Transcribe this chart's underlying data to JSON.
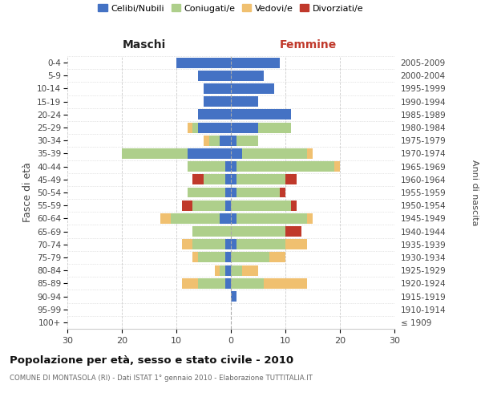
{
  "age_groups": [
    "100+",
    "95-99",
    "90-94",
    "85-89",
    "80-84",
    "75-79",
    "70-74",
    "65-69",
    "60-64",
    "55-59",
    "50-54",
    "45-49",
    "40-44",
    "35-39",
    "30-34",
    "25-29",
    "20-24",
    "15-19",
    "10-14",
    "5-9",
    "0-4"
  ],
  "birth_years": [
    "≤ 1909",
    "1910-1914",
    "1915-1919",
    "1920-1924",
    "1925-1929",
    "1930-1934",
    "1935-1939",
    "1940-1944",
    "1945-1949",
    "1950-1954",
    "1955-1959",
    "1960-1964",
    "1965-1969",
    "1970-1974",
    "1975-1979",
    "1980-1984",
    "1985-1989",
    "1990-1994",
    "1995-1999",
    "2000-2004",
    "2005-2009"
  ],
  "colors": {
    "celibe": "#4472C4",
    "coniugato": "#AECF8B",
    "vedovo": "#F0C070",
    "divorziato": "#C0392B"
  },
  "maschi": {
    "celibe": [
      0,
      0,
      0,
      1,
      1,
      1,
      1,
      0,
      2,
      1,
      1,
      1,
      1,
      8,
      2,
      6,
      6,
      5,
      5,
      6,
      10
    ],
    "coniugato": [
      0,
      0,
      0,
      5,
      1,
      5,
      6,
      7,
      9,
      6,
      7,
      4,
      7,
      12,
      2,
      1,
      0,
      0,
      0,
      0,
      0
    ],
    "vedovo": [
      0,
      0,
      0,
      3,
      1,
      1,
      2,
      0,
      2,
      0,
      0,
      0,
      0,
      0,
      1,
      1,
      0,
      0,
      0,
      0,
      0
    ],
    "divorziato": [
      0,
      0,
      0,
      0,
      0,
      0,
      0,
      0,
      0,
      2,
      0,
      2,
      0,
      0,
      0,
      0,
      0,
      0,
      0,
      0,
      0
    ]
  },
  "femmine": {
    "nubile": [
      0,
      0,
      1,
      0,
      0,
      0,
      1,
      0,
      1,
      0,
      1,
      1,
      1,
      2,
      1,
      5,
      11,
      5,
      8,
      6,
      9
    ],
    "coniugata": [
      0,
      0,
      0,
      6,
      2,
      7,
      9,
      10,
      13,
      11,
      8,
      9,
      18,
      12,
      4,
      6,
      0,
      0,
      0,
      0,
      0
    ],
    "vedova": [
      0,
      0,
      0,
      8,
      3,
      3,
      4,
      3,
      1,
      1,
      0,
      1,
      1,
      1,
      0,
      0,
      0,
      0,
      0,
      0,
      0
    ],
    "divorziata": [
      0,
      0,
      0,
      0,
      0,
      0,
      0,
      3,
      0,
      1,
      1,
      2,
      0,
      0,
      0,
      0,
      0,
      0,
      0,
      0,
      0
    ]
  },
  "xlim": 30,
  "title": "Popolazione per età, sesso e stato civile - 2010",
  "subtitle": "COMUNE DI MONTASOLA (RI) - Dati ISTAT 1° gennaio 2010 - Elaborazione TUTTITALIA.IT",
  "ylabel_left": "Fasce di età",
  "ylabel_right": "Anni di nascita",
  "xlabel_left": "Maschi",
  "xlabel_right": "Femmine",
  "legend_labels": [
    "Celibi/Nubili",
    "Coniugati/e",
    "Vedovi/e",
    "Divorziati/e"
  ],
  "bg_color": "#ffffff"
}
